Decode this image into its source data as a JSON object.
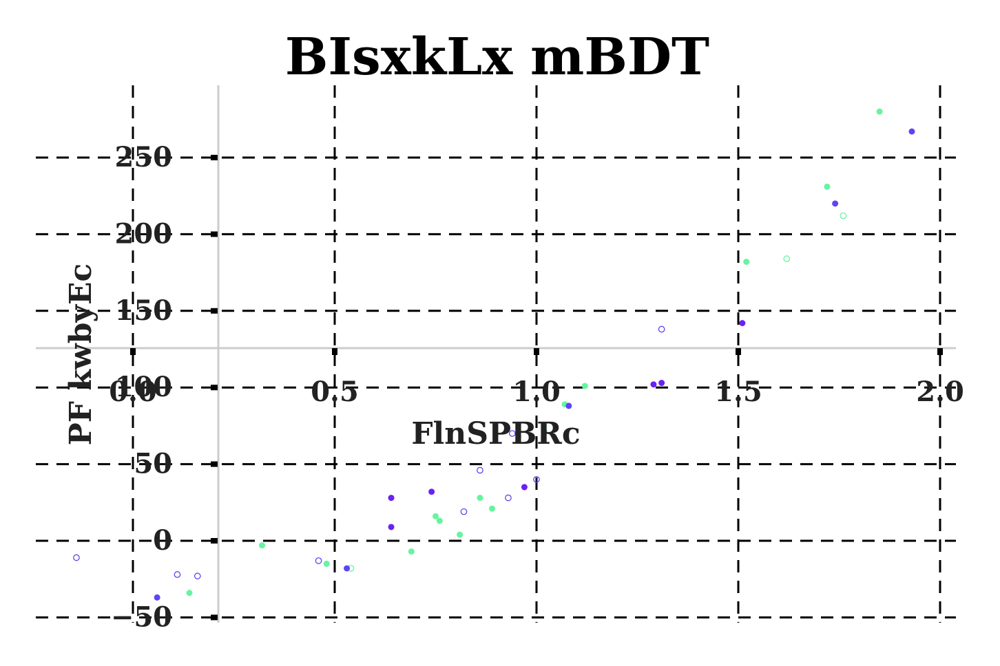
{
  "chart_data": {
    "type": "scatter",
    "title": "BIsxkLx mBDT",
    "xlabel": "FlnSPBRc",
    "ylabel": "PF kwbyEc",
    "xlim": [
      -0.3,
      2.05
    ],
    "ylim": [
      -55,
      285
    ],
    "x_ticks": [
      0.0,
      0.5,
      1.0,
      1.5,
      2.0
    ],
    "x_tick_labels": [
      "0.0",
      "0.5",
      "1.0",
      "1.5",
      "2.0"
    ],
    "y_ticks": [
      -50,
      0,
      50,
      100,
      150,
      200,
      250
    ],
    "y_tick_labels": [
      "−50",
      "0",
      "50",
      "100",
      "150",
      "200",
      "250"
    ],
    "grid": true,
    "colors": {
      "green": "#66f4a0",
      "blue": "#5b45f5",
      "violet": "#6b21f2"
    },
    "series": [
      {
        "color": "#66f4a0",
        "filled": true,
        "points": [
          [
            0.14,
            -34
          ],
          [
            0.32,
            -3
          ],
          [
            0.48,
            -15
          ],
          [
            0.69,
            -7
          ],
          [
            0.75,
            16
          ],
          [
            0.76,
            13
          ],
          [
            0.81,
            4
          ],
          [
            0.86,
            28
          ],
          [
            0.89,
            21
          ],
          [
            1.02,
            71
          ],
          [
            1.07,
            89
          ],
          [
            1.12,
            101
          ],
          [
            1.52,
            182
          ],
          [
            1.72,
            231
          ],
          [
            1.85,
            280
          ]
        ]
      },
      {
        "color": "#66f4a0",
        "filled": false,
        "points": [
          [
            0.54,
            -18
          ],
          [
            1.62,
            184
          ],
          [
            1.76,
            212
          ]
        ]
      },
      {
        "color": "#5b45f5",
        "filled": true,
        "points": [
          [
            0.06,
            -37
          ],
          [
            0.53,
            -18
          ],
          [
            1.08,
            88
          ],
          [
            1.74,
            220
          ],
          [
            1.93,
            267
          ]
        ]
      },
      {
        "color": "#5b45f5",
        "filled": false,
        "points": [
          [
            -0.14,
            -11
          ],
          [
            0.11,
            -22
          ],
          [
            0.16,
            -23
          ],
          [
            0.46,
            -13
          ],
          [
            0.86,
            46
          ],
          [
            0.82,
            19
          ],
          [
            0.93,
            28
          ],
          [
            0.94,
            70
          ],
          [
            1.0,
            40
          ],
          [
            1.31,
            138
          ]
        ]
      },
      {
        "color": "#6b21f2",
        "filled": true,
        "points": [
          [
            0.64,
            9
          ],
          [
            0.64,
            28
          ],
          [
            0.74,
            32
          ],
          [
            0.97,
            35
          ],
          [
            1.29,
            102
          ],
          [
            1.31,
            103
          ],
          [
            1.51,
            142
          ]
        ]
      }
    ]
  }
}
